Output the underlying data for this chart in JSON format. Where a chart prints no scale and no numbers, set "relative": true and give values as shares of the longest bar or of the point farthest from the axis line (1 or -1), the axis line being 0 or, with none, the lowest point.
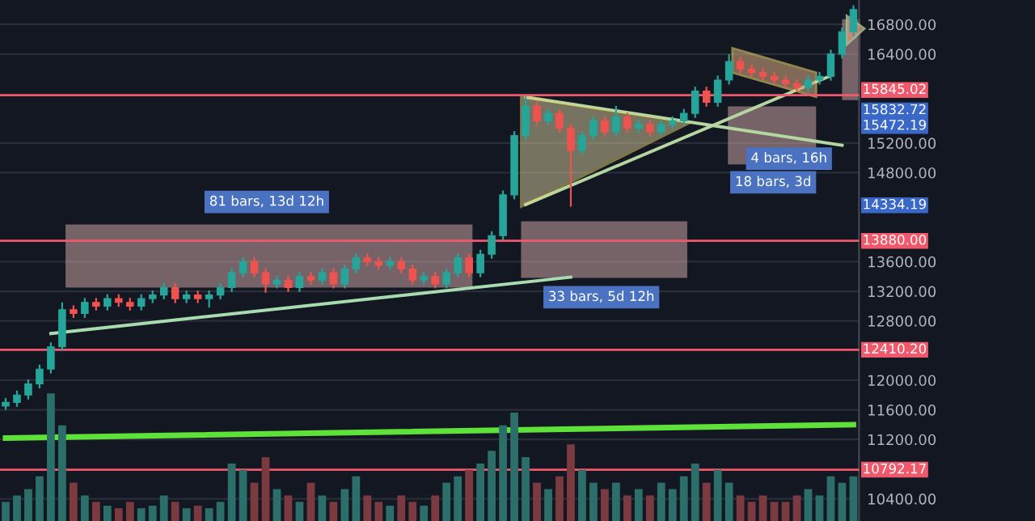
{
  "chart_data": [
    {
      "type": "candlestick",
      "categories": [
        null,
        null,
        null,
        null,
        null,
        null,
        null,
        null,
        null,
        null,
        null,
        null,
        null,
        null,
        null,
        null,
        null,
        null,
        null,
        null,
        null,
        null,
        null,
        null,
        null,
        null,
        null,
        null,
        null,
        null,
        null,
        null,
        null,
        null,
        null,
        null,
        null,
        null,
        null,
        null,
        null,
        null,
        null,
        null,
        null,
        null,
        null,
        null,
        null,
        null,
        null,
        null,
        null,
        null,
        null,
        null,
        null,
        null,
        null,
        null,
        null,
        null,
        null,
        null,
        null,
        null,
        null,
        null,
        null,
        null,
        null,
        null,
        null,
        null,
        null,
        null
      ],
      "ohlc": [
        [
          11650,
          11760,
          11600,
          11700
        ],
        [
          11700,
          11860,
          11640,
          11800
        ],
        [
          11800,
          12010,
          11740,
          11950
        ],
        [
          11950,
          12210,
          11890,
          12150
        ],
        [
          12150,
          12510,
          12090,
          12450
        ],
        [
          12450,
          13050,
          12400,
          12950
        ],
        [
          12950,
          13010,
          12840,
          12900
        ],
        [
          12900,
          13110,
          12840,
          13050
        ],
        [
          13050,
          13110,
          12940,
          13000
        ],
        [
          13000,
          13160,
          12940,
          13100
        ],
        [
          13100,
          13160,
          12990,
          13050
        ],
        [
          13050,
          13110,
          12940,
          13000
        ],
        [
          13000,
          13160,
          12940,
          13100
        ],
        [
          13100,
          13210,
          13040,
          13150
        ],
        [
          13150,
          13310,
          13090,
          13250
        ],
        [
          13250,
          13310,
          13040,
          13100
        ],
        [
          13100,
          13210,
          13040,
          13150
        ],
        [
          13150,
          13210,
          13040,
          13100
        ],
        [
          13100,
          13210,
          12980,
          13150
        ],
        [
          13150,
          13310,
          13090,
          13250
        ],
        [
          13250,
          13510,
          13190,
          13450
        ],
        [
          13450,
          13660,
          13390,
          13600
        ],
        [
          13600,
          13660,
          13390,
          13450
        ],
        [
          13450,
          13510,
          13180,
          13300
        ],
        [
          13300,
          13410,
          13240,
          13350
        ],
        [
          13350,
          13410,
          13190,
          13250
        ],
        [
          13250,
          13460,
          13190,
          13400
        ],
        [
          13400,
          13460,
          13290,
          13350
        ],
        [
          13350,
          13510,
          13290,
          13450
        ],
        [
          13450,
          13510,
          13240,
          13300
        ],
        [
          13300,
          13560,
          13240,
          13500
        ],
        [
          13500,
          13710,
          13440,
          13650
        ],
        [
          13650,
          13710,
          13540,
          13600
        ],
        [
          13600,
          13660,
          13490,
          13550
        ],
        [
          13550,
          13660,
          13490,
          13600
        ],
        [
          13600,
          13660,
          13440,
          13500
        ],
        [
          13500,
          13560,
          13290,
          13350
        ],
        [
          13350,
          13460,
          13290,
          13400
        ],
        [
          13400,
          13460,
          13240,
          13300
        ],
        [
          13300,
          13510,
          13240,
          13450
        ],
        [
          13450,
          13710,
          13390,
          13650
        ],
        [
          13650,
          13710,
          13390,
          13450
        ],
        [
          13450,
          13760,
          13390,
          13700
        ],
        [
          13700,
          14010,
          13640,
          13950
        ],
        [
          13950,
          14560,
          13890,
          14500
        ],
        [
          14500,
          15360,
          14440,
          15300
        ],
        [
          15300,
          15830,
          15240,
          15700
        ],
        [
          15700,
          15760,
          15440,
          15500
        ],
        [
          15500,
          15660,
          15440,
          15600
        ],
        [
          15600,
          15660,
          15340,
          15400
        ],
        [
          15400,
          15460,
          14340,
          15100
        ],
        [
          15100,
          15360,
          15040,
          15300
        ],
        [
          15300,
          15560,
          15240,
          15500
        ],
        [
          15500,
          15560,
          15290,
          15350
        ],
        [
          15350,
          15700,
          15290,
          15550
        ],
        [
          15550,
          15610,
          15340,
          15400
        ],
        [
          15400,
          15510,
          15340,
          15450
        ],
        [
          15450,
          15510,
          15290,
          15350
        ],
        [
          15350,
          15510,
          15290,
          15450
        ],
        [
          15450,
          15560,
          15390,
          15500
        ],
        [
          15500,
          15660,
          15440,
          15600
        ],
        [
          15600,
          15960,
          15540,
          15900
        ],
        [
          15900,
          15960,
          15690,
          15750
        ],
        [
          15750,
          16110,
          15690,
          16050
        ],
        [
          16050,
          16400,
          15990,
          16300
        ],
        [
          16300,
          16360,
          16140,
          16200
        ],
        [
          16200,
          16260,
          16090,
          16150
        ],
        [
          16150,
          16210,
          16040,
          16100
        ],
        [
          16100,
          16160,
          15990,
          16050
        ],
        [
          16050,
          16110,
          15940,
          16000
        ],
        [
          16000,
          16060,
          15890,
          15950
        ],
        [
          15950,
          16110,
          15890,
          16050
        ],
        [
          16050,
          16160,
          15990,
          16100
        ],
        [
          16100,
          16460,
          16040,
          16400
        ],
        [
          16400,
          16760,
          16340,
          16700
        ],
        [
          16700,
          17060,
          16640,
          17000
        ]
      ],
      "series": [
        {
          "type": "line",
          "color": "#a8dcb0",
          "values": [
            null,
            null,
            null,
            null,
            12630,
            null,
            null,
            null,
            null,
            null,
            null,
            null,
            null,
            null,
            null,
            null,
            null,
            null,
            null,
            null,
            null,
            null,
            null,
            null,
            null,
            null,
            null,
            null,
            null,
            null,
            null,
            null,
            null,
            null,
            null,
            null,
            null,
            null,
            null,
            null,
            null,
            null,
            null,
            null,
            null,
            null,
            null,
            null,
            null,
            null,
            13390,
            null,
            null,
            null,
            null,
            null,
            null,
            null,
            null,
            null,
            null,
            null,
            null,
            null,
            null,
            null,
            null,
            null,
            null,
            null,
            null,
            null,
            null,
            null,
            null,
            null
          ]
        },
        {
          "type": "line",
          "color": "#5ee23a",
          "values": [
            11220,
            null,
            null,
            null,
            null,
            null,
            null,
            null,
            null,
            null,
            null,
            null,
            null,
            null,
            null,
            null,
            null,
            null,
            null,
            null,
            null,
            null,
            null,
            null,
            null,
            null,
            null,
            null,
            null,
            null,
            null,
            null,
            null,
            null,
            null,
            null,
            null,
            null,
            null,
            null,
            null,
            null,
            null,
            null,
            null,
            null,
            null,
            null,
            null,
            null,
            null,
            null,
            null,
            null,
            null,
            null,
            null,
            null,
            null,
            null,
            null,
            null,
            null,
            null,
            null,
            null,
            null,
            null,
            null,
            null,
            null,
            null,
            null,
            null,
            null,
            11400
          ]
        },
        {
          "type": "line",
          "color": "#b5d6a0",
          "values": [
            null,
            null,
            null,
            null,
            null,
            null,
            null,
            null,
            null,
            null,
            null,
            null,
            null,
            null,
            null,
            null,
            null,
            null,
            null,
            null,
            null,
            null,
            null,
            null,
            null,
            null,
            null,
            null,
            null,
            null,
            null,
            null,
            null,
            null,
            null,
            null,
            null,
            null,
            null,
            null,
            null,
            null,
            null,
            null,
            null,
            null,
            14370,
            null,
            null,
            null,
            null,
            null,
            null,
            null,
            null,
            null,
            null,
            null,
            null,
            null,
            null,
            null,
            null,
            null,
            null,
            null,
            null,
            null,
            null,
            null,
            null,
            null,
            null,
            16110,
            null,
            null
          ]
        },
        {
          "type": "line",
          "color": "#b5d6a0",
          "values": [
            null,
            null,
            null,
            null,
            null,
            null,
            null,
            null,
            null,
            null,
            null,
            null,
            null,
            null,
            null,
            null,
            null,
            null,
            null,
            null,
            null,
            null,
            null,
            null,
            null,
            null,
            null,
            null,
            null,
            null,
            null,
            null,
            null,
            null,
            null,
            null,
            null,
            null,
            null,
            null,
            null,
            null,
            null,
            null,
            null,
            null,
            15820,
            null,
            null,
            null,
            null,
            null,
            null,
            null,
            null,
            null,
            null,
            null,
            null,
            null,
            null,
            null,
            null,
            null,
            null,
            null,
            null,
            null,
            null,
            null,
            null,
            null,
            null,
            null,
            15170,
            null
          ]
        }
      ],
      "ylim": [
        10100,
        17130
      ],
      "yticks": [
        {
          "value": 10400,
          "label": "10400.00"
        },
        {
          "value": 11200,
          "label": "11200.00"
        },
        {
          "value": 11600,
          "label": "11600.00"
        },
        {
          "value": 12000,
          "label": "12000.00"
        },
        {
          "value": 12800,
          "label": "12800.00"
        },
        {
          "value": 13200,
          "label": "13200.00"
        },
        {
          "value": 13600,
          "label": "13600.00"
        },
        {
          "value": 14800,
          "label": "14800.00"
        },
        {
          "value": 15200,
          "label": "15200.00"
        },
        {
          "value": 16400,
          "label": "16400.00"
        },
        {
          "value": 16800,
          "label": "16800.00"
        }
      ],
      "tick_labels": "y",
      "grid": "y",
      "ref_lines": [
        {
          "axis": "y",
          "value": 15845.02,
          "label": "15845.02",
          "color": "#f0596b"
        },
        {
          "axis": "y",
          "value": 13880.0,
          "label": "13880.00",
          "color": "#f0596b"
        },
        {
          "axis": "y",
          "value": 12410.2,
          "label": "12410.20",
          "color": "#f0596b"
        },
        {
          "axis": "y",
          "value": 10792.17,
          "label": "10792.17",
          "color": "#f0596b"
        }
      ],
      "annotations": [
        "81 bars, 13d 12h",
        "33 bars, 5d 12h",
        "18 bars, 3d",
        "4 bars, 16h",
        "15832.72",
        "15472.19",
        "14334.19"
      ]
    },
    {
      "type": "bar",
      "relative": true,
      "tick_labels": false,
      "categories": [
        null,
        null,
        null,
        null,
        null,
        null,
        null,
        null,
        null,
        null,
        null,
        null,
        null,
        null,
        null,
        null,
        null,
        null,
        null,
        null,
        null,
        null,
        null,
        null,
        null,
        null,
        null,
        null,
        null,
        null,
        null,
        null,
        null,
        null,
        null,
        null,
        null,
        null,
        null,
        null,
        null,
        null,
        null,
        null,
        null,
        null,
        null,
        null,
        null,
        null,
        null,
        null,
        null,
        null,
        null,
        null,
        null,
        null,
        null,
        null,
        null,
        null,
        null,
        null,
        null,
        null,
        null,
        null,
        null,
        null,
        null,
        null,
        null,
        null,
        null,
        null
      ],
      "values": [
        0.15,
        0.2,
        0.25,
        0.35,
        1.0,
        0.75,
        0.3,
        0.2,
        0.15,
        0.12,
        0.1,
        0.15,
        0.1,
        0.12,
        0.2,
        0.15,
        0.1,
        0.12,
        0.1,
        0.15,
        0.45,
        0.4,
        0.3,
        0.5,
        0.25,
        0.2,
        0.15,
        0.3,
        0.2,
        0.15,
        0.25,
        0.35,
        0.2,
        0.15,
        0.12,
        0.2,
        0.15,
        0.12,
        0.2,
        0.3,
        0.35,
        0.4,
        0.45,
        0.55,
        0.75,
        0.85,
        0.5,
        0.3,
        0.25,
        0.35,
        0.6,
        0.4,
        0.3,
        0.25,
        0.3,
        0.2,
        0.25,
        0.2,
        0.3,
        0.25,
        0.35,
        0.45,
        0.3,
        0.4,
        0.3,
        0.2,
        0.15,
        0.2,
        0.15,
        0.15,
        0.2,
        0.25,
        0.2,
        0.35,
        0.3,
        0.35
      ],
      "colors": [
        "#2b6e6a",
        "#2b6e6a",
        "#2b6e6a",
        "#2b6e6a",
        "#2b6e6a",
        "#2b6e6a",
        "#7a3a40",
        "#2b6e6a",
        "#7a3a40",
        "#2b6e6a",
        "#7a3a40",
        "#7a3a40",
        "#2b6e6a",
        "#2b6e6a",
        "#2b6e6a",
        "#7a3a40",
        "#2b6e6a",
        "#7a3a40",
        "#2b6e6a",
        "#2b6e6a",
        "#2b6e6a",
        "#2b6e6a",
        "#7a3a40",
        "#7a3a40",
        "#2b6e6a",
        "#7a3a40",
        "#2b6e6a",
        "#7a3a40",
        "#2b6e6a",
        "#7a3a40",
        "#2b6e6a",
        "#2b6e6a",
        "#7a3a40",
        "#7a3a40",
        "#2b6e6a",
        "#7a3a40",
        "#7a3a40",
        "#2b6e6a",
        "#7a3a40",
        "#2b6e6a",
        "#2b6e6a",
        "#7a3a40",
        "#2b6e6a",
        "#2b6e6a",
        "#2b6e6a",
        "#2b6e6a",
        "#2b6e6a",
        "#7a3a40",
        "#2b6e6a",
        "#7a3a40",
        "#7a3a40",
        "#2b6e6a",
        "#2b6e6a",
        "#7a3a40",
        "#2b6e6a",
        "#7a3a40",
        "#2b6e6a",
        "#7a3a40",
        "#2b6e6a",
        "#2b6e6a",
        "#2b6e6a",
        "#2b6e6a",
        "#7a3a40",
        "#2b6e6a",
        "#2b6e6a",
        "#7a3a40",
        "#7a3a40",
        "#7a3a40",
        "#7a3a40",
        "#7a3a40",
        "#7a3a40",
        "#2b6e6a",
        "#2b6e6a",
        "#2b6e6a",
        "#2b6e6a",
        "#2b6e6a"
      ]
    }
  ]
}
